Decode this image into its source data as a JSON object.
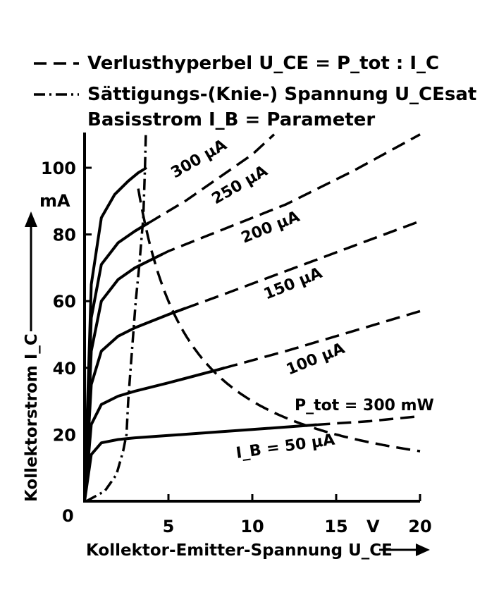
{
  "legend": {
    "hyperbola": "Verlusthyperbel U_CE = P_tot : I_C",
    "saturation": "Sättigungs-(Knie-) Spannung U_CEsat",
    "parameter": "Basisstrom I_B = Parameter"
  },
  "annotation": "P_tot = 300 mW",
  "chart_data": {
    "type": "line",
    "title": "",
    "xlabel": "Kollektor-Emitter-Spannung U_CE",
    "ylabel": "Kollektorstrom I_C",
    "x_unit": "V",
    "y_unit": "mA",
    "xlim": [
      0,
      20
    ],
    "ylim": [
      0,
      110
    ],
    "x_ticks": [
      0,
      5,
      10,
      15,
      20
    ],
    "y_ticks": [
      20,
      40,
      60,
      80,
      100
    ],
    "grid": false,
    "series": [
      {
        "name": "I_B = 50 µA",
        "label": "I_B = 50 µA",
        "x": [
          0,
          0.4,
          1,
          2,
          3,
          5,
          8,
          10,
          14,
          17,
          20
        ],
        "y": [
          0,
          14,
          17.5,
          18.5,
          19,
          19.7,
          20.8,
          21.5,
          23,
          24,
          25.5
        ]
      },
      {
        "name": "100 µA",
        "label": "100 µA",
        "x": [
          0,
          0.4,
          1,
          2,
          3,
          5,
          8,
          12,
          16,
          20
        ],
        "y": [
          0,
          23,
          29,
          31.5,
          33,
          35.5,
          39.5,
          45,
          51,
          57
        ]
      },
      {
        "name": "150 µA",
        "label": "150 µA",
        "x": [
          0,
          0.4,
          1,
          2,
          3,
          5,
          8,
          12,
          16,
          20
        ],
        "y": [
          0,
          35,
          45,
          49.5,
          52,
          56,
          61.5,
          69,
          76.5,
          84
        ]
      },
      {
        "name": "200 µA",
        "label": "200 µA",
        "x": [
          0,
          0.4,
          1,
          2,
          3,
          5,
          8,
          12,
          16,
          20
        ],
        "y": [
          0,
          45,
          60,
          66.5,
          70,
          75,
          81,
          89,
          99,
          110
        ]
      },
      {
        "name": "250 µA",
        "label": "250 µA",
        "x": [
          0,
          0.4,
          1,
          2,
          3,
          4,
          6,
          8,
          10,
          11.3
        ],
        "y": [
          0,
          55,
          71,
          77.5,
          81,
          84,
          90,
          97,
          104,
          110
        ]
      },
      {
        "name": "300 µA",
        "label": "300 µA",
        "x": [
          0,
          0.4,
          1,
          1.8,
          2.6,
          3.2,
          3.7
        ],
        "y": [
          0,
          65,
          85,
          92,
          96,
          98.5,
          100
        ]
      }
    ],
    "dashed_from_x": [
      13.8,
      8.3,
      6,
      4.6,
      3.8,
      3.5
    ],
    "hyperbola": {
      "p_tot_mW": 300,
      "x_range": [
        3.2,
        20
      ]
    },
    "saturation_curve": {
      "x": [
        0.1,
        1.2,
        1.9,
        2.3,
        2.5,
        2.6,
        2.75,
        2.9,
        3.05,
        3.25,
        3.5,
        3.6,
        3.65
      ],
      "y": [
        0,
        3,
        8,
        15,
        20,
        30,
        40,
        50,
        60,
        70,
        85,
        100,
        110
      ]
    }
  }
}
